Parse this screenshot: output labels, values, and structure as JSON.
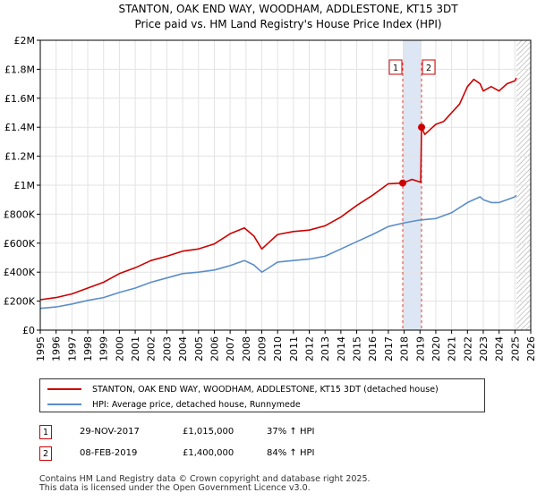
{
  "chart_data": {
    "type": "line",
    "title": "STANTON, OAK END WAY, WOODHAM, ADDLESTONE, KT15 3DT",
    "subtitle": "Price paid vs. HM Land Registry's House Price Index (HPI)",
    "x_range": [
      1995,
      2026
    ],
    "ylim": [
      0,
      2000000
    ],
    "x_ticks": [
      "1995",
      "1996",
      "1997",
      "1998",
      "1999",
      "2000",
      "2001",
      "2002",
      "2003",
      "2004",
      "2005",
      "2006",
      "2007",
      "2008",
      "2009",
      "2010",
      "2011",
      "2012",
      "2013",
      "2014",
      "2015",
      "2016",
      "2017",
      "2018",
      "2019",
      "2020",
      "2021",
      "2022",
      "2023",
      "2024",
      "2025",
      "2026"
    ],
    "y_ticks": [
      {
        "value": 0,
        "label": "£0"
      },
      {
        "value": 200000,
        "label": "£200K"
      },
      {
        "value": 400000,
        "label": "£400K"
      },
      {
        "value": 600000,
        "label": "£600K"
      },
      {
        "value": 800000,
        "label": "£800K"
      },
      {
        "value": 1000000,
        "label": "£1M"
      },
      {
        "value": 1200000,
        "label": "£1.2M"
      },
      {
        "value": 1400000,
        "label": "£1.4M"
      },
      {
        "value": 1600000,
        "label": "£1.6M"
      },
      {
        "value": 1800000,
        "label": "£1.8M"
      },
      {
        "value": 2000000,
        "label": "£2M"
      }
    ],
    "grid": true,
    "shaded_band": {
      "from": 2017.91,
      "to": 2019.1
    },
    "forecast_hatch_from": 2025.1,
    "series": [
      {
        "name": "STANTON, OAK END WAY, WOODHAM, ADDLESTONE, KT15 3DT (detached house)",
        "color": "#cc0000",
        "x": [
          1995.0,
          1996.0,
          1997.0,
          1998.0,
          1999.0,
          2000.0,
          2001.0,
          2002.0,
          2003.0,
          2004.0,
          2005.0,
          2006.0,
          2007.0,
          2007.9,
          2008.5,
          2009.0,
          2009.3,
          2010.0,
          2011.0,
          2012.0,
          2013.0,
          2014.0,
          2015.0,
          2016.0,
          2017.0,
          2017.91,
          2018.5,
          2019.05,
          2019.1,
          2019.3,
          2019.6,
          2020.0,
          2020.5,
          2021.0,
          2021.5,
          2022.0,
          2022.4,
          2022.8,
          2023.0,
          2023.5,
          2024.0,
          2024.5,
          2025.0,
          2025.1
        ],
        "y": [
          210000,
          225000,
          250000,
          290000,
          330000,
          390000,
          430000,
          480000,
          510000,
          545000,
          560000,
          595000,
          665000,
          705000,
          650000,
          560000,
          590000,
          660000,
          680000,
          690000,
          720000,
          780000,
          860000,
          930000,
          1010000,
          1015000,
          1040000,
          1020000,
          1400000,
          1350000,
          1380000,
          1420000,
          1440000,
          1500000,
          1560000,
          1680000,
          1730000,
          1700000,
          1650000,
          1680000,
          1650000,
          1700000,
          1720000,
          1740000
        ]
      },
      {
        "name": "HPI: Average price, detached house, Runnymede",
        "color": "#5b8ec9",
        "x": [
          1995.0,
          1996.0,
          1997.0,
          1998.0,
          1999.0,
          2000.0,
          2001.0,
          2002.0,
          2003.0,
          2004.0,
          2005.0,
          2006.0,
          2007.0,
          2007.9,
          2008.5,
          2009.0,
          2009.3,
          2010.0,
          2011.0,
          2012.0,
          2013.0,
          2014.0,
          2015.0,
          2016.0,
          2017.0,
          2018.0,
          2019.0,
          2020.0,
          2021.0,
          2022.0,
          2022.8,
          2023.0,
          2023.5,
          2024.0,
          2024.5,
          2025.0,
          2025.1
        ],
        "y": [
          150000,
          160000,
          180000,
          205000,
          225000,
          260000,
          290000,
          330000,
          360000,
          390000,
          400000,
          415000,
          445000,
          480000,
          450000,
          400000,
          420000,
          470000,
          480000,
          490000,
          510000,
          560000,
          610000,
          660000,
          715000,
          740000,
          760000,
          770000,
          810000,
          880000,
          920000,
          900000,
          880000,
          880000,
          900000,
          920000,
          930000
        ]
      }
    ],
    "annotations": [
      {
        "label": "1",
        "x": 2017.91,
        "y": 1015000
      },
      {
        "label": "2",
        "x": 2019.1,
        "y": 1400000
      }
    ]
  },
  "legend": [
    {
      "label": "STANTON, OAK END WAY, WOODHAM, ADDLESTONE, KT15 3DT (detached house)",
      "color": "#cc0000"
    },
    {
      "label": "HPI: Average price, detached house, Runnymede",
      "color": "#5b8ec9"
    }
  ],
  "transactions": [
    {
      "num": "1",
      "date": "29-NOV-2017",
      "price": "£1,015,000",
      "hpi": "37% ↑ HPI"
    },
    {
      "num": "2",
      "date": "08-FEB-2019",
      "price": "£1,400,000",
      "hpi": "84% ↑ HPI"
    }
  ],
  "footer": {
    "line1": "Contains HM Land Registry data © Crown copyright and database right 2025.",
    "line2": "This data is licensed under the Open Government Licence v3.0."
  }
}
